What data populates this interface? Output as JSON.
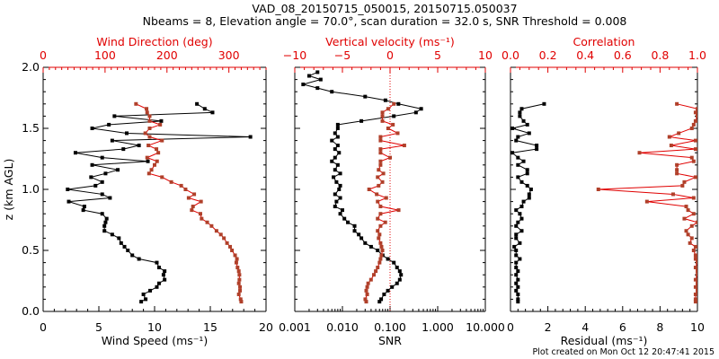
{
  "title_line1": "VAD_08_20150715_050015, 20150715.050037",
  "title_line2": "Nbeams = 8, Elevation angle = 70.0°, scan duration = 32.0 s, SNR Threshold = 0.008",
  "footer": "Plot created on Mon Oct 12 20:47:41 2015",
  "colors": {
    "primary": "#000000",
    "secondary": "#e00000",
    "secondary_marker": "#b0402a",
    "zero_line": "#e00000"
  },
  "chart_data": [
    {
      "type": "line",
      "panel": "wind",
      "ylabel": "z (km AGL)",
      "ylim": [
        0,
        2.0
      ],
      "yticks": [
        "0.0",
        "0.5",
        "1.0",
        "1.5",
        "2.0"
      ],
      "xlabel_bottom": "Wind Speed (ms⁻¹)",
      "xlim_bottom": [
        0,
        20
      ],
      "xticks_bottom": [
        "0",
        "5",
        "10",
        "15",
        "20"
      ],
      "xlabel_top": "Wind Direction (deg)",
      "xlim_top": [
        0,
        360
      ],
      "xticks_top": [
        "0",
        "100",
        "200",
        "300"
      ],
      "series": [
        {
          "name": "Wind Speed",
          "axis": "bottom",
          "color": "#000000",
          "z": [
            0.08,
            0.1,
            0.14,
            0.17,
            0.2,
            0.23,
            0.26,
            0.3,
            0.33,
            0.36,
            0.4,
            0.43,
            0.46,
            0.5,
            0.53,
            0.56,
            0.6,
            0.63,
            0.66,
            0.7,
            0.73,
            0.76,
            0.8,
            0.83,
            0.86,
            0.9,
            0.93,
            0.96,
            1.0,
            1.03,
            1.06,
            1.1,
            1.13,
            1.16,
            1.2,
            1.23,
            1.26,
            1.3,
            1.33,
            1.36,
            1.4,
            1.43,
            1.46,
            1.5,
            1.53,
            1.56,
            1.6,
            1.63,
            1.66,
            1.7
          ],
          "values": [
            8.8,
            9.2,
            9.0,
            9.6,
            10.2,
            10.4,
            10.9,
            10.8,
            10.9,
            10.4,
            10.2,
            8.6,
            8.0,
            7.6,
            7.3,
            7.0,
            6.8,
            6.2,
            5.5,
            5.5,
            5.6,
            5.7,
            5.3,
            3.6,
            3.7,
            2.3,
            6.0,
            5.3,
            2.2,
            4.7,
            5.3,
            4.3,
            5.6,
            6.7,
            4.4,
            9.4,
            5.3,
            2.9,
            7.2,
            8.6,
            6.2,
            18.6,
            7.5,
            4.4,
            5.9,
            10.6,
            6.4,
            15.2,
            14.5,
            13.8
          ]
        },
        {
          "name": "Wind Direction",
          "axis": "top",
          "color": "#b0402a",
          "z": [
            0.08,
            0.1,
            0.14,
            0.17,
            0.2,
            0.23,
            0.26,
            0.3,
            0.33,
            0.36,
            0.4,
            0.43,
            0.46,
            0.5,
            0.53,
            0.56,
            0.6,
            0.63,
            0.66,
            0.7,
            0.73,
            0.76,
            0.8,
            0.83,
            0.86,
            0.9,
            0.93,
            0.96,
            1.0,
            1.03,
            1.06,
            1.1,
            1.13,
            1.16,
            1.2,
            1.23,
            1.26,
            1.3,
            1.33,
            1.36,
            1.4,
            1.43,
            1.46,
            1.5,
            1.53,
            1.56,
            1.6,
            1.63,
            1.66,
            1.7
          ],
          "values": [
            320,
            319,
            316,
            318,
            318,
            316,
            317,
            317,
            316,
            314,
            312,
            313,
            310,
            305,
            302,
            297,
            292,
            287,
            280,
            272,
            265,
            256,
            254,
            240,
            242,
            255,
            235,
            244,
            230,
            223,
            207,
            192,
            171,
            175,
            180,
            184,
            168,
            186,
            183,
            170,
            192,
            172,
            165,
            172,
            189,
            172,
            172,
            168,
            167,
            150
          ]
        }
      ]
    },
    {
      "type": "line",
      "panel": "vertical",
      "ylim": [
        0,
        2.0
      ],
      "xlabel_bottom": "SNR",
      "xscale_bottom": "log",
      "xlim_bottom": [
        0.001,
        10
      ],
      "xticks_bottom": [
        "0.001",
        "0.010",
        "0.100",
        "1.000",
        "10.000"
      ],
      "xlabel_top": "Vertical velocity (ms⁻¹)",
      "xlim_top": [
        -10,
        10
      ],
      "xticks_top": [
        "−10",
        "−5",
        "0",
        "5",
        "10"
      ],
      "series": [
        {
          "name": "SNR",
          "axis": "bottom",
          "color": "#000000",
          "z": [
            0.08,
            0.1,
            0.14,
            0.17,
            0.2,
            0.23,
            0.26,
            0.3,
            0.33,
            0.36,
            0.4,
            0.43,
            0.46,
            0.5,
            0.53,
            0.56,
            0.6,
            0.63,
            0.66,
            0.7,
            0.73,
            0.76,
            0.8,
            0.83,
            0.86,
            0.9,
            0.93,
            0.96,
            1.0,
            1.03,
            1.06,
            1.1,
            1.13,
            1.16,
            1.2,
            1.23,
            1.26,
            1.3,
            1.33,
            1.36,
            1.4,
            1.43,
            1.46,
            1.5,
            1.53,
            1.56,
            1.6,
            1.63,
            1.66,
            1.7,
            1.73,
            1.76,
            1.8,
            1.83,
            1.86,
            1.9,
            1.93,
            1.96
          ],
          "values": [
            0.06,
            0.065,
            0.075,
            0.09,
            0.11,
            0.14,
            0.16,
            0.17,
            0.16,
            0.14,
            0.12,
            0.09,
            0.07,
            0.055,
            0.04,
            0.03,
            0.025,
            0.022,
            0.018,
            0.018,
            0.013,
            0.011,
            0.009,
            0.01,
            0.007,
            0.0075,
            0.009,
            0.007,
            0.0085,
            0.009,
            0.0075,
            0.0065,
            0.009,
            0.007,
            0.008,
            0.006,
            0.007,
            0.0085,
            0.007,
            0.008,
            0.006,
            0.008,
            0.007,
            0.008,
            0.008,
            0.025,
            0.12,
            0.35,
            0.45,
            0.15,
            0.08,
            0.03,
            0.006,
            0.003,
            0.0015,
            0.0035,
            0.002,
            0.003
          ]
        },
        {
          "name": "Vertical velocity",
          "axis": "top",
          "color": "#b0402a",
          "z": [
            0.08,
            0.1,
            0.14,
            0.17,
            0.2,
            0.23,
            0.26,
            0.3,
            0.33,
            0.36,
            0.4,
            0.43,
            0.46,
            0.5,
            0.53,
            0.56,
            0.6,
            0.63,
            0.66,
            0.7,
            0.73,
            0.76,
            0.8,
            0.83,
            0.86,
            0.9,
            0.93,
            0.96,
            1.0,
            1.03,
            1.06,
            1.1,
            1.13,
            1.16,
            1.2,
            1.23,
            1.26,
            1.3,
            1.33,
            1.36,
            1.4,
            1.43,
            1.46,
            1.5,
            1.53,
            1.56,
            1.6,
            1.63,
            1.66,
            1.7
          ],
          "values": [
            -2.5,
            -2.6,
            -2.4,
            -2.5,
            -2.4,
            -2.3,
            -2.0,
            -1.7,
            -1.5,
            -1.3,
            -1.1,
            -1.0,
            -0.9,
            -0.8,
            -0.9,
            -1.0,
            -1.2,
            -1.1,
            -1.3,
            -1.0,
            -0.5,
            -1.3,
            -1.0,
            0.9,
            -1.0,
            -1.3,
            -0.4,
            -1.4,
            -2.2,
            -1.2,
            -0.8,
            -1.3,
            -0.7,
            -1.2,
            -1.0,
            -1.0,
            0.0,
            -1.0,
            -1.0,
            1.5,
            -1.0,
            -1.0,
            0.8,
            -0.2,
            0.3,
            -0.8,
            -0.8,
            -0.8,
            -0.2,
            0.4
          ]
        }
      ]
    },
    {
      "type": "line",
      "panel": "quality",
      "ylim": [
        0,
        2.0
      ],
      "xlabel_bottom": "Residual (ms⁻¹)",
      "xlim_bottom": [
        0,
        10
      ],
      "xticks_bottom": [
        "0",
        "2",
        "4",
        "6",
        "8",
        "10"
      ],
      "xlabel_top": "Correlation",
      "xlim_top": [
        0,
        1.0
      ],
      "xticks_top": [
        "0.0",
        "0.2",
        "0.4",
        "0.6",
        "0.8",
        "1.0"
      ],
      "series": [
        {
          "name": "Residual",
          "axis": "bottom",
          "color": "#000000",
          "z": [
            0.08,
            0.1,
            0.14,
            0.17,
            0.2,
            0.23,
            0.26,
            0.3,
            0.33,
            0.36,
            0.4,
            0.43,
            0.46,
            0.5,
            0.53,
            0.56,
            0.6,
            0.63,
            0.66,
            0.7,
            0.73,
            0.76,
            0.8,
            0.83,
            0.86,
            0.9,
            0.93,
            0.96,
            1.0,
            1.03,
            1.06,
            1.1,
            1.13,
            1.16,
            1.2,
            1.23,
            1.26,
            1.3,
            1.33,
            1.36,
            1.4,
            1.43,
            1.46,
            1.5,
            1.53,
            1.56,
            1.6,
            1.63,
            1.66,
            1.7
          ],
          "values": [
            0.4,
            0.4,
            0.4,
            0.3,
            0.4,
            0.3,
            0.4,
            0.3,
            0.4,
            0.3,
            0.3,
            0.5,
            0.3,
            0.3,
            0.2,
            0.5,
            0.3,
            0.3,
            0.6,
            0.3,
            0.4,
            0.6,
            0.5,
            0.3,
            0.6,
            0.7,
            1.0,
            1.0,
            1.1,
            0.9,
            0.6,
            0.4,
            0.9,
            0.9,
            0.4,
            0.7,
            0.4,
            0.1,
            1.4,
            1.4,
            0.3,
            0.4,
            1.0,
            0.1,
            0.9,
            0.7,
            0.5,
            0.5,
            0.6,
            1.8
          ]
        },
        {
          "name": "Correlation",
          "axis": "top",
          "color": "#b0402a",
          "z": [
            0.08,
            0.1,
            0.14,
            0.17,
            0.2,
            0.23,
            0.26,
            0.3,
            0.33,
            0.36,
            0.4,
            0.43,
            0.46,
            0.5,
            0.53,
            0.56,
            0.6,
            0.63,
            0.66,
            0.7,
            0.73,
            0.76,
            0.8,
            0.83,
            0.86,
            0.9,
            0.93,
            0.96,
            1.0,
            1.03,
            1.06,
            1.1,
            1.13,
            1.16,
            1.2,
            1.23,
            1.26,
            1.3,
            1.33,
            1.36,
            1.4,
            1.43,
            1.46,
            1.5,
            1.53,
            1.56,
            1.6,
            1.63,
            1.66,
            1.7
          ],
          "values": [
            0.99,
            0.99,
            0.99,
            1.0,
            0.99,
            1.0,
            0.99,
            1.0,
            1.0,
            0.99,
            1.0,
            0.99,
            0.99,
            0.98,
            0.99,
            0.96,
            0.97,
            0.95,
            0.94,
            0.97,
            1.0,
            0.93,
            0.98,
            0.95,
            0.94,
            0.73,
            0.98,
            0.87,
            0.47,
            0.92,
            0.93,
            0.99,
            0.89,
            0.89,
            0.89,
            0.98,
            0.97,
            0.69,
            0.99,
            0.86,
            0.99,
            0.85,
            0.9,
            0.97,
            0.98,
            0.99,
            1.0,
            0.99,
            1.0,
            0.89
          ]
        }
      ]
    }
  ]
}
